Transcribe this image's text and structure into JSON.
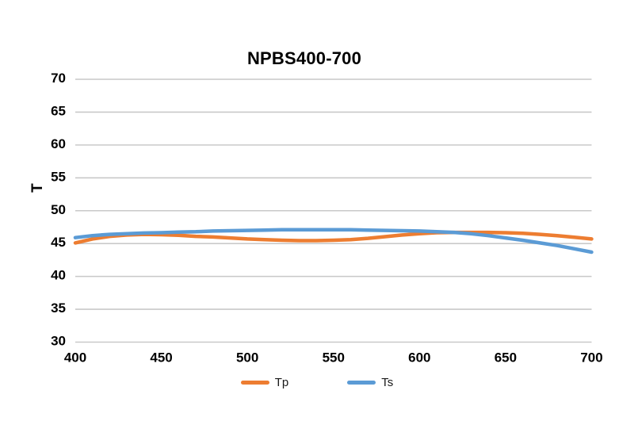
{
  "chart_data": {
    "type": "line",
    "title": "NPBS400-700",
    "xlabel": "",
    "ylabel": "T",
    "xlim": [
      400,
      700
    ],
    "ylim": [
      30,
      70
    ],
    "x_ticks": [
      "400",
      "450",
      "500",
      "550",
      "600",
      "650",
      "700"
    ],
    "y_ticks": [
      "30",
      "35",
      "40",
      "45",
      "50",
      "55",
      "60",
      "65",
      "70"
    ],
    "grid": "horizontal",
    "gridline_color": "#c9c9c9",
    "legend_position": "bottom",
    "x": [
      400,
      410,
      420,
      430,
      440,
      450,
      460,
      470,
      480,
      490,
      500,
      510,
      520,
      530,
      540,
      550,
      560,
      570,
      580,
      590,
      600,
      610,
      620,
      630,
      640,
      650,
      660,
      670,
      680,
      690,
      700
    ],
    "series": [
      {
        "name": "Tp",
        "color": "#ED7D31",
        "values": [
          45.1,
          45.7,
          46.1,
          46.3,
          46.4,
          46.35,
          46.25,
          46.1,
          46.0,
          45.85,
          45.7,
          45.6,
          45.5,
          45.45,
          45.45,
          45.5,
          45.6,
          45.8,
          46.05,
          46.3,
          46.5,
          46.65,
          46.7,
          46.7,
          46.7,
          46.65,
          46.55,
          46.4,
          46.2,
          45.95,
          45.7
        ]
      },
      {
        "name": "Ts",
        "color": "#5B9BD5",
        "values": [
          45.9,
          46.2,
          46.4,
          46.5,
          46.6,
          46.65,
          46.75,
          46.8,
          46.9,
          46.95,
          47.0,
          47.05,
          47.1,
          47.1,
          47.1,
          47.1,
          47.1,
          47.05,
          47.0,
          46.95,
          46.9,
          46.8,
          46.7,
          46.5,
          46.2,
          45.85,
          45.5,
          45.1,
          44.7,
          44.2,
          43.7
        ]
      }
    ]
  }
}
